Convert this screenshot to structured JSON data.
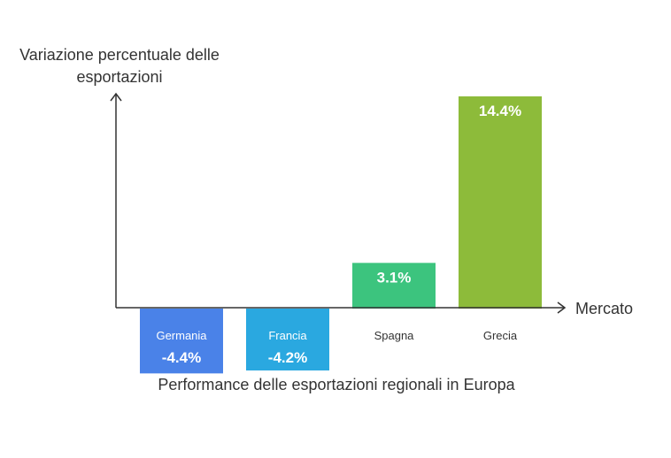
{
  "chart_data": {
    "type": "bar",
    "title": "Performance delle esportazioni regionali in Europa",
    "xlabel": "Mercato",
    "ylabel": "Variazione percentuale delle esportazioni",
    "categories": [
      "Germania",
      "Francia",
      "Spagna",
      "Grecia"
    ],
    "values": [
      -4.4,
      -4.2,
      3.1,
      14.4
    ],
    "value_labels": [
      "-4.4%",
      "-4.2%",
      "3.1%",
      "14.4%"
    ],
    "colors": [
      "#4a82e8",
      "#2aa8e0",
      "#3cc47e",
      "#8dbb3a"
    ],
    "grid": false,
    "legend": "none"
  }
}
